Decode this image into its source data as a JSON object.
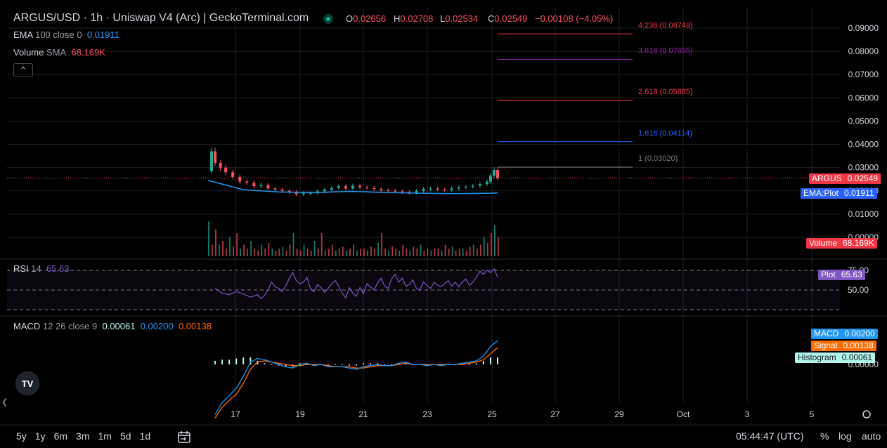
{
  "header": {
    "title": "ARGUS/USD · 1h · Uniswap V4 (Arc) | GeckoTerminal.com",
    "ohlc": {
      "o_label": "O",
      "o": "0.02656",
      "h_label": "H",
      "h": "0.02708",
      "l_label": "L",
      "l": "0.02534",
      "c_label": "C",
      "c": "0.02549",
      "change": "−0.00108 (−4.05%)"
    }
  },
  "legends": {
    "ema": {
      "name": "EMA",
      "params": "100 close 0",
      "value": "0.01911"
    },
    "volume": {
      "name": "Volume",
      "params": "SMA",
      "value": "68.169K"
    },
    "rsi": {
      "name": "RSI",
      "params": "14",
      "value": "65.63"
    },
    "macd": {
      "name": "MACD",
      "params": "12 26 close 9",
      "hist": "0.00061",
      "macd": "0.00200",
      "signal": "0.00138"
    }
  },
  "badges": {
    "argus": {
      "name": "ARGUS",
      "value": "0.02549"
    },
    "ema": {
      "name": "EMA:Plot",
      "value": "0.01911"
    },
    "volume": {
      "name": "Volume",
      "value": "68.169K"
    },
    "rsi": {
      "name": "Plot",
      "value": "65.63"
    },
    "macd": {
      "name": "MACD",
      "value": "0.00200"
    },
    "signal": {
      "name": "Signal",
      "value": "0.00138"
    },
    "histogram": {
      "name": "Histogram",
      "value": "0.00061"
    }
  },
  "toolbar": {
    "timeframes": [
      "5y",
      "1y",
      "6m",
      "3m",
      "1m",
      "5d",
      "1d"
    ],
    "time": "05:44:47 (UTC)",
    "percent": "%",
    "log": "log",
    "auto": "auto",
    "logo": "TV"
  },
  "colors": {
    "up": "#22ab94",
    "down": "#f7525f",
    "ema": "#2962ff",
    "rsi": "#7e57c2",
    "macd": "#2196f3",
    "signal": "#ff6d00",
    "bg": "#000000",
    "grid": "#1c1f26"
  },
  "chart_data": {
    "type": "candlestick",
    "price_axis": {
      "ticks": [
        "0.00000",
        "0.01000",
        "0.02000",
        "0.03000",
        "0.04000",
        "0.05000",
        "0.06000",
        "0.07000",
        "0.08000",
        "0.09000"
      ],
      "range": [
        0,
        0.09
      ]
    },
    "rsi_axis": {
      "ticks": [
        "75.00",
        "50.00"
      ],
      "bands": [
        70,
        50,
        30
      ]
    },
    "macd_axis": {
      "ticks": [
        "0.00000"
      ]
    },
    "x_axis": {
      "ticks": [
        "17",
        "19",
        "21",
        "23",
        "25",
        "27",
        "29",
        "Oct",
        "3",
        "5"
      ]
    },
    "fib_levels": [
      {
        "label": "4.236 (0.08749)",
        "value": 0.08749,
        "color": "#f23645"
      },
      {
        "label": "3.618 (0.07655)",
        "value": 0.07655,
        "color": "#9c27b0"
      },
      {
        "label": "2.618 (0.05885)",
        "value": 0.05885,
        "color": "#f23645"
      },
      {
        "label": "1.618 (0.04114)",
        "value": 0.04114,
        "color": "#2962ff"
      },
      {
        "label": "1 (0.03020)",
        "value": 0.0302,
        "color": "#787b86"
      }
    ],
    "last_price": 0.02549,
    "ema_last": 0.01911,
    "price_series": [
      [
        0,
        0.0285
      ],
      [
        2,
        0.037
      ],
      [
        4,
        0.032
      ],
      [
        7,
        0.03
      ],
      [
        10,
        0.028
      ],
      [
        14,
        0.026
      ],
      [
        18,
        0.024
      ],
      [
        22,
        0.0235
      ],
      [
        26,
        0.022
      ],
      [
        30,
        0.0225
      ],
      [
        34,
        0.021
      ],
      [
        38,
        0.0205
      ],
      [
        42,
        0.02
      ],
      [
        46,
        0.0195
      ],
      [
        50,
        0.0185
      ],
      [
        54,
        0.019
      ],
      [
        58,
        0.019
      ],
      [
        62,
        0.0198
      ],
      [
        66,
        0.0205
      ],
      [
        70,
        0.0212
      ],
      [
        74,
        0.022
      ],
      [
        78,
        0.021
      ],
      [
        82,
        0.0222
      ],
      [
        86,
        0.0215
      ],
      [
        90,
        0.0212
      ],
      [
        94,
        0.0208
      ],
      [
        98,
        0.0203
      ],
      [
        102,
        0.02
      ],
      [
        106,
        0.0198
      ],
      [
        110,
        0.0195
      ],
      [
        114,
        0.0192
      ],
      [
        118,
        0.02
      ],
      [
        122,
        0.0208
      ],
      [
        126,
        0.021
      ],
      [
        130,
        0.0206
      ],
      [
        134,
        0.0203
      ],
      [
        138,
        0.021
      ],
      [
        142,
        0.0215
      ],
      [
        146,
        0.0218
      ],
      [
        150,
        0.0222
      ],
      [
        154,
        0.0229
      ],
      [
        158,
        0.024
      ],
      [
        160,
        0.0265
      ],
      [
        162,
        0.029
      ],
      [
        164,
        0.0255
      ]
    ],
    "volume_series": [
      [
        0,
        0.9
      ],
      [
        2,
        0.3
      ],
      [
        4,
        0.7
      ],
      [
        6,
        0.3
      ],
      [
        8,
        0.4
      ],
      [
        10,
        0.2
      ],
      [
        12,
        0.5
      ],
      [
        14,
        0.25
      ],
      [
        16,
        0.6
      ],
      [
        18,
        0.2
      ],
      [
        20,
        0.3
      ],
      [
        22,
        0.2
      ],
      [
        24,
        0.4
      ],
      [
        26,
        0.2
      ],
      [
        28,
        0.15
      ],
      [
        30,
        0.3
      ],
      [
        32,
        0.2
      ],
      [
        34,
        0.35
      ],
      [
        36,
        0.2
      ],
      [
        38,
        0.15
      ],
      [
        40,
        0.2
      ],
      [
        42,
        0.25
      ],
      [
        44,
        0.15
      ],
      [
        46,
        0.3
      ],
      [
        48,
        0.6
      ],
      [
        50,
        0.2
      ],
      [
        52,
        0.15
      ],
      [
        54,
        0.3
      ],
      [
        56,
        0.2
      ],
      [
        58,
        0.15
      ],
      [
        60,
        0.4
      ],
      [
        62,
        0.2
      ],
      [
        64,
        0.6
      ],
      [
        66,
        0.15
      ],
      [
        68,
        0.2
      ],
      [
        70,
        0.3
      ],
      [
        72,
        0.15
      ],
      [
        74,
        0.2
      ],
      [
        76,
        0.25
      ],
      [
        78,
        0.15
      ],
      [
        80,
        0.2
      ],
      [
        82,
        0.3
      ],
      [
        84,
        0.15
      ],
      [
        86,
        0.2
      ],
      [
        88,
        0.2
      ],
      [
        90,
        0.15
      ],
      [
        92,
        0.25
      ],
      [
        94,
        0.2
      ],
      [
        96,
        0.35
      ],
      [
        98,
        0.6
      ],
      [
        100,
        0.2
      ],
      [
        102,
        0.15
      ],
      [
        104,
        0.25
      ],
      [
        106,
        0.2
      ],
      [
        108,
        0.15
      ],
      [
        110,
        0.3
      ],
      [
        112,
        0.2
      ],
      [
        114,
        0.15
      ],
      [
        116,
        0.25
      ],
      [
        118,
        0.2
      ],
      [
        120,
        0.3
      ],
      [
        122,
        0.15
      ],
      [
        124,
        0.2
      ],
      [
        126,
        0.15
      ],
      [
        128,
        0.2
      ],
      [
        130,
        0.2
      ],
      [
        132,
        0.15
      ],
      [
        134,
        0.3
      ],
      [
        136,
        0.2
      ],
      [
        138,
        0.25
      ],
      [
        140,
        0.15
      ],
      [
        142,
        0.2
      ],
      [
        144,
        0.2
      ],
      [
        146,
        0.15
      ],
      [
        148,
        0.25
      ],
      [
        150,
        0.3
      ],
      [
        152,
        0.2
      ],
      [
        154,
        0.3
      ],
      [
        156,
        0.5
      ],
      [
        158,
        0.35
      ],
      [
        160,
        0.6
      ],
      [
        162,
        0.8
      ],
      [
        164,
        0.5
      ]
    ],
    "rsi_series": [
      [
        4,
        52
      ],
      [
        8,
        46
      ],
      [
        12,
        44
      ],
      [
        16,
        48
      ],
      [
        20,
        45
      ],
      [
        24,
        41
      ],
      [
        28,
        44
      ],
      [
        30,
        39
      ],
      [
        32,
        43
      ],
      [
        34,
        50
      ],
      [
        36,
        60
      ],
      [
        38,
        54
      ],
      [
        40,
        52
      ],
      [
        42,
        48
      ],
      [
        44,
        55
      ],
      [
        46,
        65
      ],
      [
        48,
        72
      ],
      [
        50,
        62
      ],
      [
        52,
        58
      ],
      [
        54,
        60
      ],
      [
        56,
        66
      ],
      [
        58,
        52
      ],
      [
        60,
        48
      ],
      [
        62,
        57
      ],
      [
        64,
        53
      ],
      [
        66,
        47
      ],
      [
        68,
        52
      ],
      [
        70,
        58
      ],
      [
        72,
        62
      ],
      [
        74,
        55
      ],
      [
        76,
        46
      ],
      [
        78,
        40
      ],
      [
        80,
        53
      ],
      [
        82,
        46
      ],
      [
        84,
        42
      ],
      [
        86,
        53
      ],
      [
        88,
        45
      ],
      [
        90,
        58
      ],
      [
        92,
        54
      ],
      [
        94,
        50
      ],
      [
        96,
        59
      ],
      [
        98,
        65
      ],
      [
        100,
        55
      ],
      [
        102,
        52
      ],
      [
        104,
        64
      ],
      [
        106,
        70
      ],
      [
        108,
        60
      ],
      [
        110,
        65
      ],
      [
        112,
        55
      ],
      [
        114,
        57
      ],
      [
        116,
        63
      ],
      [
        118,
        52
      ],
      [
        120,
        50
      ],
      [
        122,
        60
      ],
      [
        124,
        56
      ],
      [
        126,
        52
      ],
      [
        128,
        60
      ],
      [
        130,
        56
      ],
      [
        132,
        54
      ],
      [
        134,
        58
      ],
      [
        136,
        62
      ],
      [
        138,
        55
      ],
      [
        140,
        60
      ],
      [
        142,
        54
      ],
      [
        144,
        60
      ],
      [
        146,
        64
      ],
      [
        148,
        56
      ],
      [
        150,
        60
      ],
      [
        152,
        66
      ],
      [
        154,
        74
      ],
      [
        156,
        70
      ],
      [
        158,
        75
      ],
      [
        160,
        72
      ],
      [
        162,
        77
      ],
      [
        164,
        66
      ]
    ],
    "macd_series": [
      [
        4,
        -0.0042
      ],
      [
        8,
        -0.0032
      ],
      [
        12,
        -0.0026
      ],
      [
        16,
        -0.002
      ],
      [
        20,
        -0.001
      ],
      [
        24,
        0.0002
      ],
      [
        28,
        0.0005
      ],
      [
        32,
        0.0004
      ],
      [
        36,
        0.0002
      ],
      [
        40,
        0.0
      ],
      [
        44,
        -0.0002
      ],
      [
        48,
        -0.0003
      ],
      [
        52,
        0.0
      ],
      [
        56,
        0.0001
      ],
      [
        60,
        -0.0001
      ],
      [
        64,
        0.0
      ],
      [
        68,
        -0.0002
      ],
      [
        72,
        -0.0002
      ],
      [
        76,
        -0.0002
      ],
      [
        80,
        -0.0003
      ],
      [
        84,
        -0.0004
      ],
      [
        88,
        -0.0002
      ],
      [
        92,
        -0.0001
      ],
      [
        96,
        0.0
      ],
      [
        100,
        -0.0001
      ],
      [
        104,
        -0.0001
      ],
      [
        108,
        0.0001
      ],
      [
        112,
        0.0002
      ],
      [
        116,
        0.0
      ],
      [
        120,
        0.0
      ],
      [
        124,
        -0.0001
      ],
      [
        128,
        0.0
      ],
      [
        132,
        -0.0001
      ],
      [
        136,
        0.0
      ],
      [
        140,
        0.0
      ],
      [
        144,
        0.0001
      ],
      [
        148,
        0.0002
      ],
      [
        152,
        0.0003
      ],
      [
        156,
        0.0007
      ],
      [
        160,
        0.0015
      ],
      [
        164,
        0.002
      ]
    ],
    "signal_series": [
      [
        4,
        -0.0045
      ],
      [
        8,
        -0.0036
      ],
      [
        12,
        -0.003
      ],
      [
        16,
        -0.0025
      ],
      [
        20,
        -0.0016
      ],
      [
        24,
        -0.0004
      ],
      [
        28,
        0.0002
      ],
      [
        32,
        0.0003
      ],
      [
        36,
        0.0002
      ],
      [
        40,
        0.0001
      ],
      [
        44,
        0.0
      ],
      [
        48,
        -0.0001
      ],
      [
        52,
        -0.0001
      ],
      [
        56,
        0.0
      ],
      [
        60,
        0.0
      ],
      [
        64,
        0.0
      ],
      [
        68,
        -0.0001
      ],
      [
        72,
        -0.0002
      ],
      [
        76,
        -0.0002
      ],
      [
        80,
        -0.0002
      ],
      [
        84,
        -0.0003
      ],
      [
        88,
        -0.0003
      ],
      [
        92,
        -0.0002
      ],
      [
        96,
        -0.0001
      ],
      [
        100,
        -0.0001
      ],
      [
        104,
        -0.0001
      ],
      [
        108,
        0.0
      ],
      [
        112,
        0.0001
      ],
      [
        116,
        0.0
      ],
      [
        120,
        0.0
      ],
      [
        124,
        0.0
      ],
      [
        128,
        0.0
      ],
      [
        132,
        0.0
      ],
      [
        136,
        0.0
      ],
      [
        140,
        0.0
      ],
      [
        144,
        0.0
      ],
      [
        148,
        0.0001
      ],
      [
        152,
        0.0002
      ],
      [
        156,
        0.0004
      ],
      [
        160,
        0.0009
      ],
      [
        164,
        0.0014
      ]
    ]
  }
}
